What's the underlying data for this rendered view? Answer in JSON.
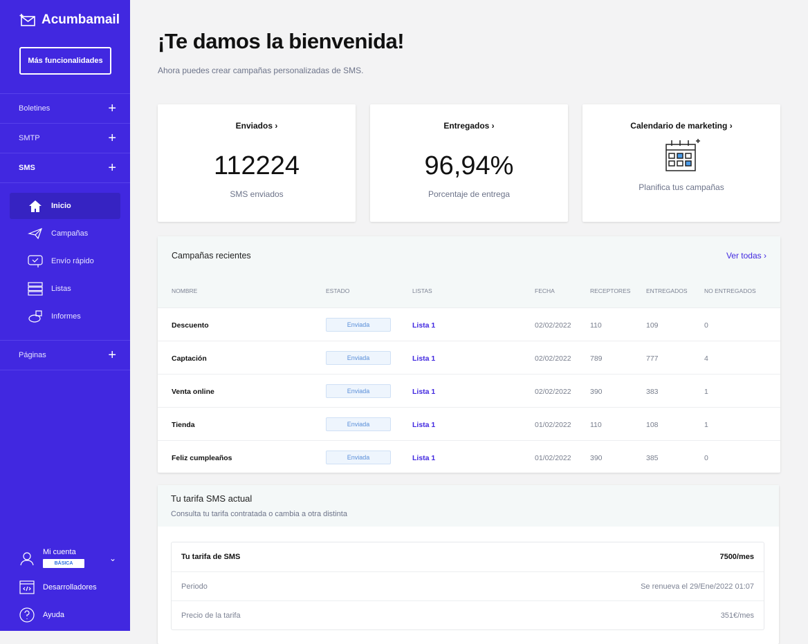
{
  "sidebar": {
    "brand": "Acumbamail",
    "more_button": "Más funcionalidades",
    "sections": [
      {
        "label": "Boletines"
      },
      {
        "label": "SMTP"
      },
      {
        "label": "SMS"
      },
      {
        "label": "Páginas"
      }
    ],
    "items": [
      {
        "label": "Inicio",
        "icon": "home-icon"
      },
      {
        "label": "Campañas",
        "icon": "paper-plane-icon"
      },
      {
        "label": "Envío rápido",
        "icon": "chat-check-icon"
      },
      {
        "label": "Listas",
        "icon": "list-icon"
      },
      {
        "label": "Informes",
        "icon": "pie-chart-icon"
      }
    ],
    "account": {
      "label": "Mi cuenta",
      "plan": "BÁSICA"
    },
    "developers": "Desarrolladores",
    "help": "Ayuda"
  },
  "main": {
    "title": "¡Te damos la bienvenida!",
    "subtitle": "Ahora puedes crear campañas personalizadas de SMS.",
    "stats": [
      {
        "title": "Enviados",
        "value": "112224",
        "label": "SMS enviados"
      },
      {
        "title": "Entregados",
        "value": "96,94%",
        "label": "Porcentaje de entrega"
      },
      {
        "title": "Calendario de marketing",
        "label": "Planifica tus campañas"
      }
    ],
    "recent": {
      "title": "Campañas recientes",
      "view_all": "Ver todas",
      "columns": [
        "NOMBRE",
        "ESTADO",
        "LISTAS",
        "FECHA",
        "RECEPTORES",
        "ENTREGADOS",
        "NO ENTREGADOS"
      ],
      "rows": [
        [
          "Descuento",
          "Enviada",
          "Lista 1",
          "02/02/2022",
          "110",
          "109",
          "0"
        ],
        [
          "Captación",
          "Enviada",
          "Lista 1",
          "02/02/2022",
          "789",
          "777",
          "4"
        ],
        [
          "Venta online",
          "Enviada",
          "Lista 1",
          "02/02/2022",
          "390",
          "383",
          "1"
        ],
        [
          "Tienda",
          "Enviada",
          "Lista 1",
          "01/02/2022",
          "110",
          "108",
          "1"
        ],
        [
          "Feliz cumpleaños",
          "Enviada",
          "Lista 1",
          "01/02/2022",
          "390",
          "385",
          "0"
        ]
      ]
    },
    "tariff": {
      "title": "Tu tarifa SMS actual",
      "subtitle": "Consulta tu tarifa contratada o cambia a otra distinta",
      "rows": [
        {
          "label": "Tu tarifa de SMS",
          "value": "7500/mes"
        },
        {
          "label": "Periodo",
          "value": "Se renueva el 29/Ene/2022 01:07"
        },
        {
          "label": "Precio de la tarifa",
          "value": "351€/mes"
        }
      ]
    }
  },
  "colors": {
    "sidebar": "#4128e0",
    "accent": "#4128e0"
  }
}
